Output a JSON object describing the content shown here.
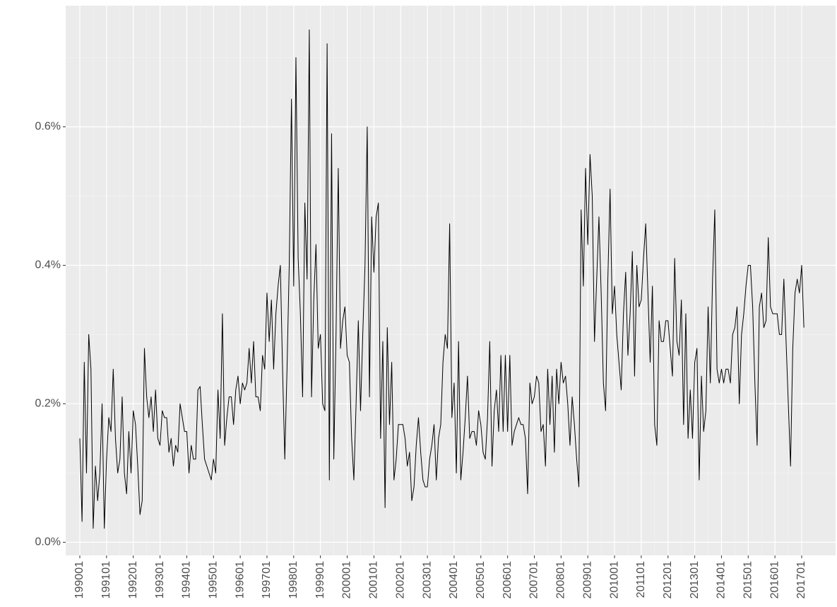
{
  "chart_data": {
    "type": "line",
    "categories": [
      "199001",
      null,
      null,
      null,
      null,
      null,
      null,
      null,
      null,
      null,
      null,
      null,
      "199101",
      null,
      null,
      null,
      null,
      null,
      null,
      null,
      null,
      null,
      null,
      null,
      "199201",
      null,
      null,
      null,
      null,
      null,
      null,
      null,
      null,
      null,
      null,
      null,
      "199301",
      null,
      null,
      null,
      null,
      null,
      null,
      null,
      null,
      null,
      null,
      null,
      "199401",
      null,
      null,
      null,
      null,
      null,
      null,
      null,
      null,
      null,
      null,
      null,
      "199501",
      null,
      null,
      null,
      null,
      null,
      null,
      null,
      null,
      null,
      null,
      null,
      "199601",
      null,
      null,
      null,
      null,
      null,
      null,
      null,
      null,
      null,
      null,
      null,
      "199701",
      null,
      null,
      null,
      null,
      null,
      null,
      null,
      null,
      null,
      null,
      null,
      "199801",
      null,
      null,
      null,
      null,
      null,
      null,
      null,
      null,
      null,
      null,
      null,
      "199901",
      null,
      null,
      null,
      null,
      null,
      null,
      null,
      null,
      null,
      null,
      null,
      "200001",
      null,
      null,
      null,
      null,
      null,
      null,
      null,
      null,
      null,
      null,
      null,
      "200101",
      null,
      null,
      null,
      null,
      null,
      null,
      null,
      null,
      null,
      null,
      null,
      "200201",
      null,
      null,
      null,
      null,
      null,
      null,
      null,
      null,
      null,
      null,
      null,
      "200301",
      null,
      null,
      null,
      null,
      null,
      null,
      null,
      null,
      null,
      null,
      null,
      "200401",
      null,
      null,
      null,
      null,
      null,
      null,
      null,
      null,
      null,
      null,
      null,
      "200501",
      null,
      null,
      null,
      null,
      null,
      null,
      null,
      null,
      null,
      null,
      null,
      "200601",
      null,
      null,
      null,
      null,
      null,
      null,
      null,
      null,
      null,
      null,
      null,
      "200701",
      null,
      null,
      null,
      null,
      null,
      null,
      null,
      null,
      null,
      null,
      null,
      "200801",
      null,
      null,
      null,
      null,
      null,
      null,
      null,
      null,
      null,
      null,
      null,
      "200901",
      null,
      null,
      null,
      null,
      null,
      null,
      null,
      null,
      null,
      null,
      null,
      "201001",
      null,
      null,
      null,
      null,
      null,
      null,
      null,
      null,
      null,
      null,
      null,
      "201101",
      null,
      null,
      null,
      null,
      null,
      null,
      null,
      null,
      null,
      null,
      null,
      "201201",
      null,
      null,
      null,
      null,
      null,
      null,
      null,
      null,
      null,
      null,
      null,
      "201301",
      null,
      null,
      null,
      null,
      null,
      null,
      null,
      null,
      null,
      null,
      null,
      "201401",
      null,
      null,
      null,
      null,
      null,
      null,
      null,
      null,
      null,
      null,
      null,
      "201501",
      null,
      null,
      null,
      null,
      null,
      null,
      null,
      null,
      null,
      null,
      null,
      "201601",
      null,
      null,
      null,
      null,
      null,
      null,
      null,
      null,
      null,
      null,
      null,
      "201701",
      null
    ],
    "values": [
      0.15,
      0.03,
      0.26,
      0.1,
      0.3,
      0.25,
      0.02,
      0.11,
      0.06,
      0.1,
      0.2,
      0.02,
      0.12,
      0.18,
      0.16,
      0.25,
      0.15,
      0.1,
      0.12,
      0.21,
      0.1,
      0.07,
      0.16,
      0.1,
      0.19,
      0.17,
      0.11,
      0.04,
      0.06,
      0.28,
      0.21,
      0.18,
      0.21,
      0.16,
      0.22,
      0.15,
      0.14,
      0.19,
      0.18,
      0.18,
      0.13,
      0.15,
      0.11,
      0.14,
      0.13,
      0.2,
      0.18,
      0.16,
      0.16,
      0.1,
      0.14,
      0.12,
      0.12,
      0.22,
      0.225,
      0.17,
      0.12,
      0.11,
      0.1,
      0.09,
      0.12,
      0.1,
      0.22,
      0.15,
      0.33,
      0.14,
      0.18,
      0.21,
      0.21,
      0.17,
      0.22,
      0.24,
      0.2,
      0.23,
      0.22,
      0.23,
      0.28,
      0.23,
      0.29,
      0.21,
      0.21,
      0.19,
      0.27,
      0.25,
      0.36,
      0.29,
      0.35,
      0.25,
      0.33,
      0.37,
      0.4,
      0.25,
      0.12,
      0.25,
      0.4,
      0.64,
      0.37,
      0.7,
      0.41,
      0.33,
      0.21,
      0.49,
      0.38,
      0.74,
      0.21,
      0.35,
      0.43,
      0.28,
      0.3,
      0.2,
      0.19,
      0.72,
      0.09,
      0.59,
      0.12,
      0.3,
      0.54,
      0.28,
      0.32,
      0.34,
      0.27,
      0.26,
      0.15,
      0.09,
      0.2,
      0.32,
      0.19,
      0.3,
      0.4,
      0.6,
      0.21,
      0.47,
      0.39,
      0.47,
      0.49,
      0.15,
      0.29,
      0.05,
      0.31,
      0.17,
      0.26,
      0.09,
      0.12,
      0.17,
      0.17,
      0.17,
      0.15,
      0.11,
      0.13,
      0.06,
      0.08,
      0.14,
      0.18,
      0.13,
      0.09,
      0.08,
      0.08,
      0.12,
      0.14,
      0.17,
      0.09,
      0.15,
      0.17,
      0.26,
      0.3,
      0.28,
      0.46,
      0.18,
      0.23,
      0.1,
      0.29,
      0.09,
      0.13,
      0.18,
      0.24,
      0.15,
      0.16,
      0.16,
      0.14,
      0.19,
      0.17,
      0.13,
      0.12,
      0.18,
      0.29,
      0.11,
      0.19,
      0.22,
      0.16,
      0.27,
      0.16,
      0.27,
      0.16,
      0.27,
      0.14,
      0.16,
      0.17,
      0.18,
      0.17,
      0.17,
      0.15,
      0.07,
      0.23,
      0.2,
      0.21,
      0.24,
      0.23,
      0.16,
      0.17,
      0.11,
      0.25,
      0.17,
      0.24,
      0.13,
      0.25,
      0.2,
      0.26,
      0.23,
      0.24,
      0.2,
      0.14,
      0.21,
      0.17,
      0.12,
      0.08,
      0.48,
      0.37,
      0.54,
      0.43,
      0.56,
      0.5,
      0.29,
      0.38,
      0.47,
      0.36,
      0.23,
      0.19,
      0.38,
      0.51,
      0.33,
      0.37,
      0.3,
      0.26,
      0.22,
      0.33,
      0.39,
      0.27,
      0.33,
      0.42,
      0.24,
      0.4,
      0.34,
      0.35,
      0.41,
      0.46,
      0.36,
      0.26,
      0.37,
      0.17,
      0.14,
      0.32,
      0.29,
      0.29,
      0.32,
      0.32,
      0.28,
      0.24,
      0.41,
      0.29,
      0.27,
      0.35,
      0.17,
      0.33,
      0.15,
      0.22,
      0.15,
      0.26,
      0.28,
      0.09,
      0.24,
      0.16,
      0.19,
      0.34,
      0.23,
      0.38,
      0.48,
      0.25,
      0.23,
      0.25,
      0.23,
      0.25,
      0.25,
      0.23,
      0.3,
      0.31,
      0.34,
      0.2,
      0.3,
      0.33,
      0.37,
      0.4,
      0.4,
      0.34,
      0.23,
      0.14,
      0.34,
      0.36,
      0.31,
      0.32,
      0.44,
      0.34,
      0.33,
      0.33,
      0.33,
      0.3,
      0.3,
      0.38,
      0.29,
      0.2,
      0.11,
      0.28,
      0.36,
      0.38,
      0.36,
      0.4,
      0.31
    ],
    "color": "#000000",
    "ylim": [
      -0.019,
      0.775
    ],
    "yticks": [
      {
        "value": 0,
        "label": "0.0%"
      },
      {
        "value": 0.2,
        "label": "0.2%"
      },
      {
        "value": 0.4,
        "label": "0.4%"
      },
      {
        "value": 0.6,
        "label": "0.6%"
      }
    ],
    "grid": true
  }
}
